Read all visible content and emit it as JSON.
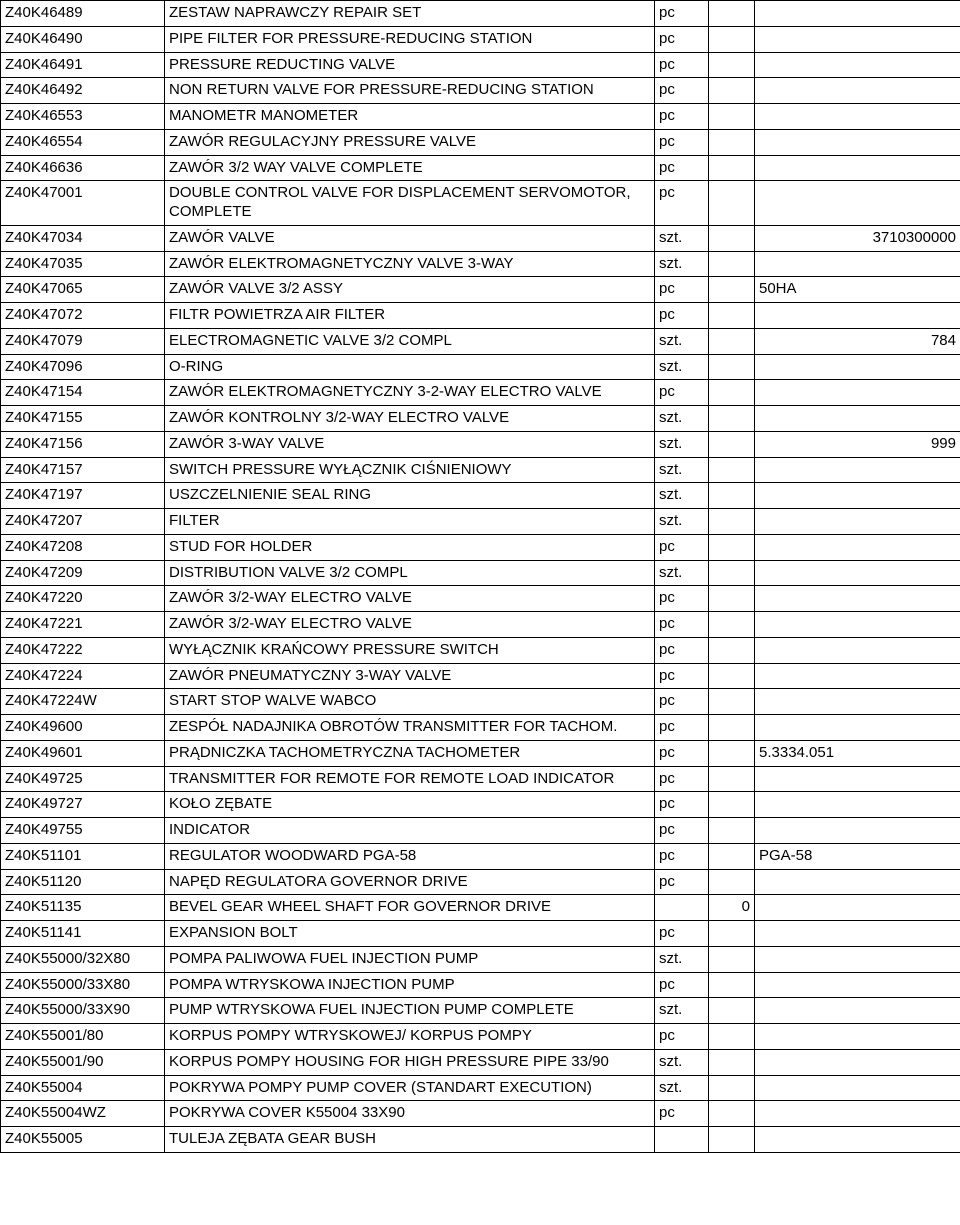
{
  "table": {
    "columns": {
      "c1_width": 164,
      "c2_width": 490,
      "c3_width": 54,
      "c4_width": 46,
      "c5_width": 206
    },
    "rows": [
      {
        "code": "Z40K46489",
        "desc": "ZESTAW NAPRAWCZY REPAIR SET",
        "unit": "pc",
        "col4": "",
        "col5": ""
      },
      {
        "code": "Z40K46490",
        "desc": "PIPE FILTER FOR PRESSURE-REDUCING STATION",
        "unit": "pc",
        "col4": "",
        "col5": ""
      },
      {
        "code": "Z40K46491",
        "desc": "PRESSURE REDUCTING VALVE",
        "unit": "pc",
        "col4": "",
        "col5": ""
      },
      {
        "code": "Z40K46492",
        "desc": "NON RETURN VALVE FOR  PRESSURE-REDUCING STATION",
        "unit": "pc",
        "col4": "",
        "col5": ""
      },
      {
        "code": "Z40K46553",
        "desc": "MANOMETR MANOMETER",
        "unit": "pc",
        "col4": "",
        "col5": ""
      },
      {
        "code": "Z40K46554",
        "desc": "ZAWÓR REGULACYJNY PRESSURE VALVE",
        "unit": "pc",
        "col4": "",
        "col5": ""
      },
      {
        "code": "Z40K46636",
        "desc": "ZAWÓR 3/2 WAY VALVE COMPLETE",
        "unit": "pc",
        "col4": "",
        "col5": ""
      },
      {
        "code": "Z40K47001",
        "desc": "DOUBLE CONTROL VALVE FOR DISPLACEMENT SERVOMOTOR, COMPLETE",
        "unit": "pc",
        "col4": "",
        "col5": ""
      },
      {
        "code": "Z40K47034",
        "desc": "ZAWÓR VALVE",
        "unit": "szt.",
        "col4": "",
        "col5": "3710300000",
        "col5_align": "right"
      },
      {
        "code": "Z40K47035",
        "desc": "ZAWÓR ELEKTROMAGNETYCZNY VALVE 3-WAY",
        "unit": "szt.",
        "col4": "",
        "col5": ""
      },
      {
        "code": "Z40K47065",
        "desc": "ZAWÓR VALVE 3/2 ASSY",
        "unit": "pc",
        "col4": "",
        "col5": "50HA"
      },
      {
        "code": "Z40K47072",
        "desc": "FILTR POWIETRZA AIR FILTER",
        "unit": "pc",
        "col4": "",
        "col5": ""
      },
      {
        "code": "Z40K47079",
        "desc": "ELECTROMAGNETIC VALVE 3/2 COMPL",
        "unit": "szt.",
        "col4": "",
        "col5": "784",
        "col5_align": "right"
      },
      {
        "code": "Z40K47096",
        "desc": "O-RING",
        "unit": "szt.",
        "col4": "",
        "col5": ""
      },
      {
        "code": "Z40K47154",
        "desc": "ZAWÓR ELEKTROMAGNETYCZNY 3-2-WAY ELECTRO VALVE",
        "unit": "pc",
        "col4": "",
        "col5": ""
      },
      {
        "code": "Z40K47155",
        "desc": "ZAWÓR KONTROLNY 3/2-WAY ELECTRO VALVE",
        "unit": "szt.",
        "col4": "",
        "col5": ""
      },
      {
        "code": "Z40K47156",
        "desc": "ZAWÓR 3-WAY VALVE",
        "unit": "szt.",
        "col4": "",
        "col5": "999",
        "col5_align": "right"
      },
      {
        "code": "Z40K47157",
        "desc": "SWITCH PRESSURE WYŁĄCZNIK CIŚNIENIOWY",
        "unit": "szt.",
        "col4": "",
        "col5": ""
      },
      {
        "code": "Z40K47197",
        "desc": "USZCZELNIENIE SEAL RING",
        "unit": "szt.",
        "col4": "",
        "col5": ""
      },
      {
        "code": "Z40K47207",
        "desc": "FILTER",
        "unit": "szt.",
        "col4": "",
        "col5": ""
      },
      {
        "code": "Z40K47208",
        "desc": "STUD FOR HOLDER",
        "unit": "pc",
        "col4": "",
        "col5": ""
      },
      {
        "code": "Z40K47209",
        "desc": "DISTRIBUTION VALVE 3/2 COMPL",
        "unit": "szt.",
        "col4": "",
        "col5": ""
      },
      {
        "code": "Z40K47220",
        "desc": "ZAWÓR 3/2-WAY ELECTRO VALVE",
        "unit": "pc",
        "col4": "",
        "col5": ""
      },
      {
        "code": "Z40K47221",
        "desc": "ZAWÓR 3/2-WAY ELECTRO VALVE",
        "unit": "pc",
        "col4": "",
        "col5": ""
      },
      {
        "code": "Z40K47222",
        "desc": "WYŁĄCZNIK KRAŃCOWY PRESSURE SWITCH",
        "unit": "pc",
        "col4": "",
        "col5": ""
      },
      {
        "code": "Z40K47224",
        "desc": "ZAWÓR PNEUMATYCZNY 3-WAY VALVE",
        "unit": "pc",
        "col4": "",
        "col5": ""
      },
      {
        "code": "Z40K47224W",
        "desc": "START STOP WALVE WABCO",
        "unit": "pc",
        "col4": "",
        "col5": ""
      },
      {
        "code": "Z40K49600",
        "desc": "ZESPÓŁ NADAJNIKA OBROTÓW  TRANSMITTER FOR TACHOM.",
        "unit": "pc",
        "col4": "",
        "col5": ""
      },
      {
        "code": "Z40K49601",
        "desc": "PRĄDNICZKA TACHOMETRYCZNA TACHOMETER",
        "unit": "pc",
        "col4": "",
        "col5": "5.3334.051"
      },
      {
        "code": "Z40K49725",
        "desc": "TRANSMITTER FOR REMOTE FOR REMOTE LOAD INDICATOR",
        "unit": "pc",
        "col4": "",
        "col5": ""
      },
      {
        "code": "Z40K49727",
        "desc": "KOŁO ZĘBATE",
        "unit": "pc",
        "col4": "",
        "col5": ""
      },
      {
        "code": "Z40K49755",
        "desc": "INDICATOR",
        "unit": "pc",
        "col4": "",
        "col5": ""
      },
      {
        "code": "Z40K51101",
        "desc": "REGULATOR WOODWARD PGA-58",
        "unit": "pc",
        "col4": "",
        "col5": "PGA-58"
      },
      {
        "code": "Z40K51120",
        "desc": "NAPĘD REGULATORA GOVERNOR DRIVE",
        "unit": "pc",
        "col4": "",
        "col5": ""
      },
      {
        "code": "Z40K51135",
        "desc": "BEVEL GEAR WHEEL SHAFT FOR GOVERNOR DRIVE",
        "unit": "",
        "col4": "0",
        "col4_align": "right",
        "col5": ""
      },
      {
        "code": "Z40K51141",
        "desc": "EXPANSION BOLT",
        "unit": "pc",
        "col4": "",
        "col5": ""
      },
      {
        "code": "Z40K55000/32X80",
        "desc": "POMPA PALIWOWA FUEL INJECTION PUMP",
        "unit": "szt.",
        "col4": "",
        "col5": ""
      },
      {
        "code": "Z40K55000/33X80",
        "desc": "POMPA WTRYSKOWA INJECTION PUMP",
        "unit": "pc",
        "col4": "",
        "col5": ""
      },
      {
        "code": "Z40K55000/33X90",
        "desc": "PUMP WTRYSKOWA FUEL INJECTION PUMP COMPLETE",
        "unit": "szt.",
        "col4": "",
        "col5": ""
      },
      {
        "code": "Z40K55001/80",
        "desc": "KORPUS POMPY WTRYSKOWEJ/ KORPUS POMPY",
        "unit": "pc",
        "col4": "",
        "col5": ""
      },
      {
        "code": "Z40K55001/90",
        "desc": "KORPUS POMPY HOUSING FOR HIGH PRESSURE PIPE 33/90",
        "unit": "szt.",
        "col4": "",
        "col5": ""
      },
      {
        "code": "Z40K55004",
        "desc": "POKRYWA POMPY PUMP COVER (STANDART EXECUTION)",
        "unit": "szt.",
        "col4": "",
        "col5": ""
      },
      {
        "code": "Z40K55004WZ",
        "desc": "POKRYWA COVER K55004 33X90",
        "unit": "pc",
        "col4": "",
        "col5": ""
      },
      {
        "code": "Z40K55005",
        "desc": "TULEJA ZĘBATA GEAR BUSH",
        "unit": "",
        "col4": "",
        "col5": ""
      }
    ]
  }
}
